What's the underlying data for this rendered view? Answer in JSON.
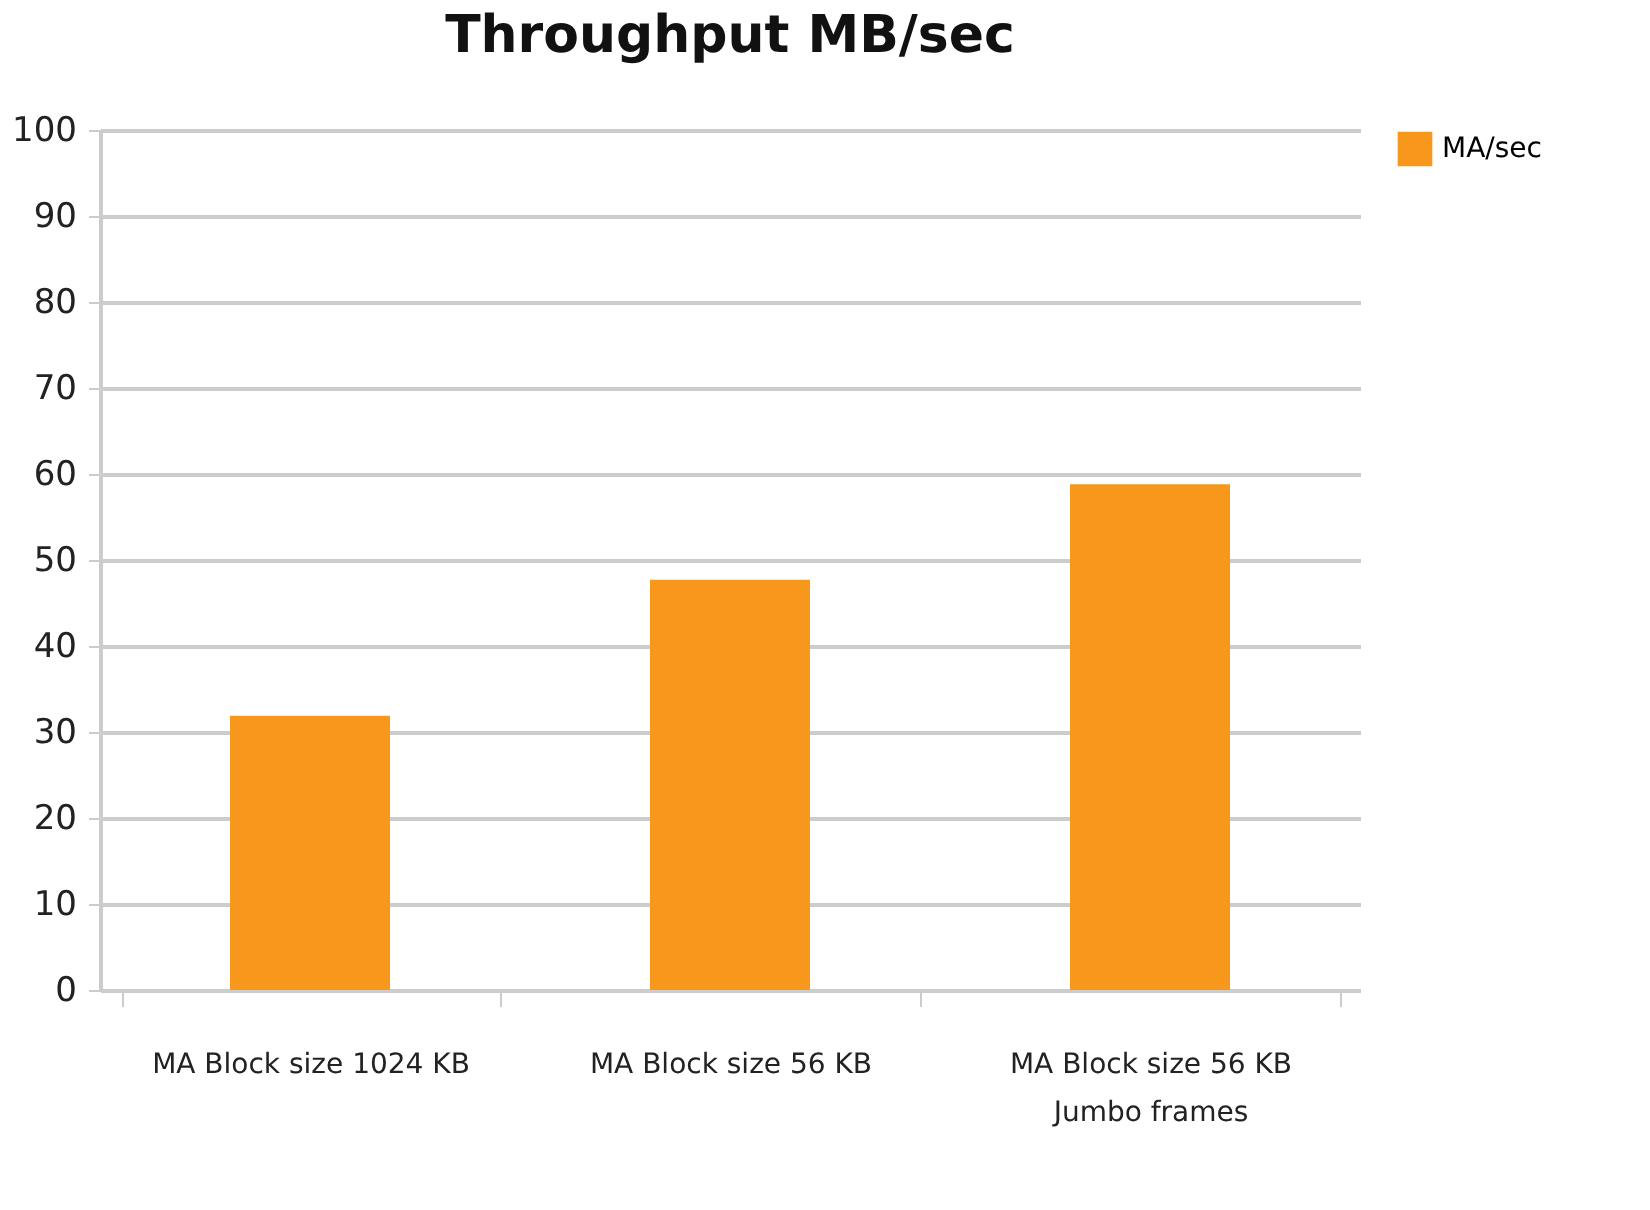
{
  "chart_data": {
    "type": "bar",
    "title": "Throughput MB/sec",
    "categories": [
      "MA Block size 1024 KB",
      "MA Block size 56 KB",
      "MA Block size 56 KB\nJumbo frames"
    ],
    "series": [
      {
        "name": "MA/sec",
        "color": "#f7981d",
        "values": [
          31.9,
          47.7,
          58.8
        ]
      }
    ],
    "ylim": [
      0,
      100
    ],
    "yticks": [
      0,
      10,
      20,
      30,
      40,
      50,
      60,
      70,
      80,
      90,
      100
    ],
    "grid": "y",
    "legend": "right"
  }
}
